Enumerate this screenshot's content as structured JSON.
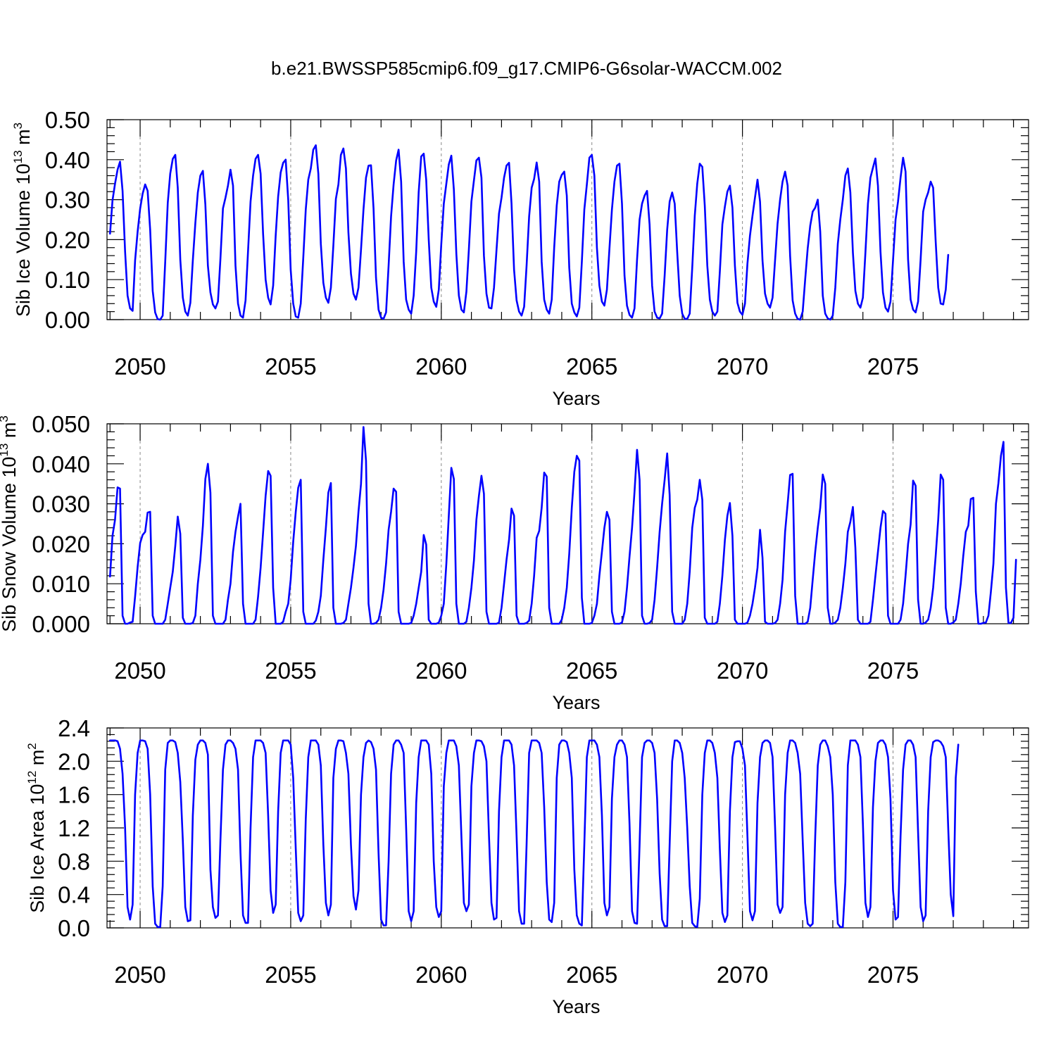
{
  "figure": {
    "title": "b.e21.BWSSP585cmip6.f09_g17.CMIP6-G6solar-WACCM.002"
  },
  "style": {
    "line_color": "#0000ff",
    "axis_color": "#000000",
    "gridline_color": "#888888"
  },
  "chart_data": [
    {
      "type": "line",
      "panel": "ice-volume",
      "ylabel": {
        "text": "Sib Ice Volume 10",
        "exp": "13",
        "unit": " m",
        "unit_exp": "3"
      },
      "xlabel": "Years",
      "xlim": [
        2048.9,
        2079.5
      ],
      "ylim": [
        0.0,
        0.5
      ],
      "yticks": [
        0.0,
        0.1,
        0.2,
        0.3,
        0.4,
        0.5
      ],
      "ytick_labels": [
        "0.00",
        "0.10",
        "0.20",
        "0.30",
        "0.40",
        "0.50"
      ],
      "ytick_minor_step": 0.02,
      "xticks": [
        2050,
        2055,
        2060,
        2065,
        2070,
        2075
      ],
      "xtick_labels": [
        "2050",
        "2055",
        "2060",
        "2065",
        "2070",
        "2075"
      ],
      "xtick_minor_step": 1,
      "gridlines_x": [
        2050,
        2055,
        2060,
        2065,
        2070,
        2075
      ],
      "start_year": 2049.0,
      "step": 0.0833333,
      "values": [
        0.215,
        0.298,
        0.34,
        0.375,
        0.395,
        0.322,
        0.17,
        0.06,
        0.028,
        0.022,
        0.148,
        0.22,
        0.278,
        0.315,
        0.338,
        0.322,
        0.225,
        0.072,
        0.018,
        0.001,
        0.0,
        0.01,
        0.145,
        0.292,
        0.365,
        0.402,
        0.412,
        0.33,
        0.15,
        0.055,
        0.02,
        0.01,
        0.042,
        0.148,
        0.242,
        0.318,
        0.36,
        0.372,
        0.288,
        0.135,
        0.068,
        0.038,
        0.028,
        0.045,
        0.152,
        0.278,
        0.305,
        0.335,
        0.375,
        0.335,
        0.135,
        0.04,
        0.01,
        0.005,
        0.048,
        0.17,
        0.295,
        0.36,
        0.402,
        0.412,
        0.365,
        0.215,
        0.1,
        0.055,
        0.038,
        0.085,
        0.21,
        0.308,
        0.368,
        0.392,
        0.4,
        0.3,
        0.125,
        0.04,
        0.008,
        0.005,
        0.04,
        0.155,
        0.275,
        0.35,
        0.378,
        0.425,
        0.436,
        0.365,
        0.19,
        0.092,
        0.055,
        0.042,
        0.08,
        0.185,
        0.302,
        0.338,
        0.412,
        0.428,
        0.378,
        0.218,
        0.115,
        0.065,
        0.05,
        0.08,
        0.175,
        0.275,
        0.355,
        0.385,
        0.386,
        0.278,
        0.105,
        0.025,
        0.005,
        0.002,
        0.018,
        0.135,
        0.258,
        0.338,
        0.398,
        0.425,
        0.345,
        0.145,
        0.05,
        0.025,
        0.015,
        0.06,
        0.17,
        0.318,
        0.408,
        0.415,
        0.35,
        0.2,
        0.08,
        0.045,
        0.032,
        0.075,
        0.188,
        0.29,
        0.34,
        0.388,
        0.41,
        0.325,
        0.165,
        0.06,
        0.025,
        0.018,
        0.07,
        0.175,
        0.295,
        0.348,
        0.398,
        0.405,
        0.355,
        0.16,
        0.065,
        0.03,
        0.028,
        0.08,
        0.175,
        0.265,
        0.305,
        0.355,
        0.385,
        0.392,
        0.29,
        0.125,
        0.048,
        0.02,
        0.01,
        0.032,
        0.135,
        0.258,
        0.33,
        0.352,
        0.393,
        0.345,
        0.145,
        0.05,
        0.025,
        0.015,
        0.05,
        0.18,
        0.285,
        0.345,
        0.362,
        0.37,
        0.31,
        0.13,
        0.04,
        0.018,
        0.008,
        0.03,
        0.145,
        0.275,
        0.338,
        0.405,
        0.412,
        0.36,
        0.18,
        0.085,
        0.045,
        0.035,
        0.075,
        0.178,
        0.275,
        0.345,
        0.385,
        0.39,
        0.29,
        0.11,
        0.035,
        0.012,
        0.005,
        0.028,
        0.15,
        0.25,
        0.29,
        0.31,
        0.322,
        0.238,
        0.085,
        0.02,
        0.005,
        0.003,
        0.015,
        0.11,
        0.225,
        0.295,
        0.318,
        0.29,
        0.17,
        0.06,
        0.015,
        0.002,
        0.002,
        0.015,
        0.13,
        0.26,
        0.34,
        0.39,
        0.382,
        0.285,
        0.135,
        0.05,
        0.02,
        0.01,
        0.02,
        0.12,
        0.238,
        0.283,
        0.32,
        0.335,
        0.28,
        0.135,
        0.042,
        0.02,
        0.012,
        0.04,
        0.14,
        0.21,
        0.26,
        0.305,
        0.35,
        0.295,
        0.148,
        0.065,
        0.04,
        0.03,
        0.055,
        0.15,
        0.24,
        0.3,
        0.345,
        0.37,
        0.335,
        0.16,
        0.048,
        0.015,
        0.002,
        0.0,
        0.02,
        0.1,
        0.178,
        0.235,
        0.27,
        0.28,
        0.3,
        0.22,
        0.06,
        0.015,
        0.003,
        0.0,
        0.01,
        0.08,
        0.19,
        0.25,
        0.3,
        0.36,
        0.378,
        0.318,
        0.168,
        0.072,
        0.04,
        0.03,
        0.055,
        0.168,
        0.29,
        0.355,
        0.38,
        0.403,
        0.335,
        0.17,
        0.068,
        0.03,
        0.02,
        0.045,
        0.148,
        0.25,
        0.295,
        0.355,
        0.405,
        0.37,
        0.15,
        0.05,
        0.025,
        0.018,
        0.045,
        0.15,
        0.27,
        0.3,
        0.318,
        0.345,
        0.33,
        0.195,
        0.08,
        0.04,
        0.038,
        0.075,
        0.162
      ]
    },
    {
      "type": "line",
      "panel": "snow-volume",
      "ylabel": {
        "text": "Sib Snow Volume 10",
        "exp": "13",
        "unit": " m",
        "unit_exp": "3"
      },
      "xlabel": "Years",
      "xlim": [
        2048.9,
        2079.5
      ],
      "ylim": [
        0.0,
        0.05
      ],
      "yticks": [
        0.0,
        0.01,
        0.02,
        0.03,
        0.04,
        0.05
      ],
      "ytick_labels": [
        "0.000",
        "0.010",
        "0.020",
        "0.030",
        "0.040",
        "0.050"
      ],
      "ytick_minor_step": 0.002,
      "xticks": [
        2050,
        2055,
        2060,
        2065,
        2070,
        2075
      ],
      "xtick_labels": [
        "2050",
        "2055",
        "2060",
        "2065",
        "2070",
        "2075"
      ],
      "xtick_minor_step": 1,
      "gridlines_x": [
        2050,
        2055,
        2060,
        2065,
        2070,
        2075
      ],
      "start_year": 2049.0,
      "step": 0.0833333,
      "values": [
        0.0118,
        0.022,
        0.026,
        0.0341,
        0.0338,
        0.002,
        0.0,
        0.0,
        0.0003,
        0.0005,
        0.0068,
        0.0142,
        0.0202,
        0.0222,
        0.023,
        0.0278,
        0.028,
        0.002,
        0.0,
        0.0,
        0.0,
        0.0,
        0.001,
        0.005,
        0.009,
        0.013,
        0.0195,
        0.0268,
        0.0225,
        0.0015,
        0.0,
        0.0,
        0.0,
        0.0002,
        0.002,
        0.01,
        0.016,
        0.0245,
        0.0362,
        0.04,
        0.0328,
        0.002,
        0.0,
        0.0,
        0.0,
        0.0,
        0.001,
        0.006,
        0.01,
        0.018,
        0.023,
        0.0268,
        0.03,
        0.005,
        0.0,
        0.0,
        0.0,
        0.0,
        0.001,
        0.0068,
        0.014,
        0.0228,
        0.032,
        0.0382,
        0.037,
        0.009,
        0.0,
        0.0,
        0.0,
        0.0005,
        0.003,
        0.005,
        0.011,
        0.0205,
        0.028,
        0.034,
        0.036,
        0.003,
        0.0,
        0.0,
        0.0,
        0.0,
        0.0008,
        0.003,
        0.007,
        0.016,
        0.024,
        0.0328,
        0.0352,
        0.004,
        0.0,
        0.0,
        0.0,
        0.0002,
        0.001,
        0.005,
        0.009,
        0.014,
        0.0195,
        0.028,
        0.035,
        0.0492,
        0.0408,
        0.005,
        0.0,
        0.0,
        0.0002,
        0.001,
        0.004,
        0.0085,
        0.015,
        0.0235,
        0.028,
        0.0338,
        0.033,
        0.003,
        0.0,
        0.0,
        0.0,
        0.0,
        0.0002,
        0.002,
        0.005,
        0.009,
        0.013,
        0.0222,
        0.0198,
        0.001,
        0.0,
        0.0,
        0.0,
        0.0003,
        0.002,
        0.005,
        0.015,
        0.027,
        0.039,
        0.0362,
        0.005,
        0.0,
        0.0,
        0.0,
        0.0005,
        0.004,
        0.009,
        0.0158,
        0.026,
        0.032,
        0.037,
        0.0325,
        0.003,
        0.0,
        0.0,
        0.0,
        0.0,
        0.0003,
        0.004,
        0.01,
        0.016,
        0.021,
        0.0288,
        0.027,
        0.002,
        0.0,
        0.0,
        0.0,
        0.0002,
        0.0008,
        0.005,
        0.012,
        0.0215,
        0.0232,
        0.029,
        0.0378,
        0.0368,
        0.004,
        0.0,
        0.0,
        0.0,
        0.0,
        0.001,
        0.004,
        0.009,
        0.0175,
        0.029,
        0.038,
        0.042,
        0.0408,
        0.0065,
        0.0,
        0.0,
        0.0,
        0.0002,
        0.002,
        0.005,
        0.012,
        0.018,
        0.024,
        0.028,
        0.026,
        0.003,
        0.0,
        0.0,
        0.0,
        0.0003,
        0.003,
        0.009,
        0.0168,
        0.024,
        0.033,
        0.0435,
        0.036,
        0.002,
        0.0,
        0.0,
        0.0002,
        0.001,
        0.006,
        0.014,
        0.023,
        0.03,
        0.036,
        0.0426,
        0.0322,
        0.003,
        0.0,
        0.0,
        0.0,
        0.0,
        0.001,
        0.005,
        0.013,
        0.024,
        0.029,
        0.031,
        0.036,
        0.031,
        0.0015,
        0.0,
        0.0,
        0.0,
        0.0,
        0.0005,
        0.005,
        0.012,
        0.021,
        0.027,
        0.0302,
        0.022,
        0.001,
        0.0,
        0.0,
        0.0,
        0.0,
        0.0003,
        0.002,
        0.005,
        0.009,
        0.014,
        0.0235,
        0.0165,
        0.0005,
        0.0,
        0.0,
        0.0,
        0.0002,
        0.001,
        0.005,
        0.011,
        0.023,
        0.03,
        0.0372,
        0.0375,
        0.007,
        0.0,
        0.0,
        0.0,
        0.0,
        0.0005,
        0.004,
        0.011,
        0.018,
        0.024,
        0.029,
        0.0373,
        0.035,
        0.004,
        0.0,
        0.0,
        0.0003,
        0.001,
        0.004,
        0.009,
        0.015,
        0.023,
        0.0255,
        0.0292,
        0.019,
        0.001,
        0.0,
        0.0,
        0.0,
        0.0,
        0.0005,
        0.006,
        0.012,
        0.018,
        0.024,
        0.0282,
        0.0275,
        0.002,
        0.0,
        0.0,
        0.0,
        0.0,
        0.001,
        0.005,
        0.012,
        0.02,
        0.0248,
        0.0358,
        0.0345,
        0.006,
        0.0,
        0.0,
        0.0003,
        0.001,
        0.004,
        0.009,
        0.017,
        0.026,
        0.0373,
        0.036,
        0.004,
        0.0,
        0.0,
        0.0003,
        0.001,
        0.005,
        0.01,
        0.017,
        0.023,
        0.0245,
        0.0312,
        0.0315,
        0.008,
        0.0,
        0.0,
        0.0002,
        0.0003,
        0.002,
        0.008,
        0.015,
        0.03,
        0.0352,
        0.042,
        0.0455,
        0.009,
        0.0002,
        0.0002,
        0.0015,
        0.016
      ]
    },
    {
      "type": "line",
      "panel": "ice-area",
      "ylabel": {
        "text": "Sib Ice Area 10",
        "exp": "12",
        "unit": " m",
        "unit_exp": "2"
      },
      "xlabel": "Years",
      "xlim": [
        2048.9,
        2079.5
      ],
      "ylim": [
        0.0,
        2.4
      ],
      "yticks": [
        0.0,
        0.4,
        0.8,
        1.2,
        1.6,
        2.0,
        2.4
      ],
      "ytick_labels": [
        "0.0",
        "0.4",
        "0.8",
        "1.2",
        "1.6",
        "2.0",
        "2.4"
      ],
      "ytick_minor_step": 0.08,
      "xticks": [
        2050,
        2055,
        2060,
        2065,
        2070,
        2075
      ],
      "xtick_labels": [
        "2050",
        "2055",
        "2060",
        "2065",
        "2070",
        "2075"
      ],
      "xtick_minor_step": 1,
      "gridlines_x": [
        2050,
        2055,
        2060,
        2065,
        2070,
        2075
      ],
      "start_year": 2049.0,
      "step": 0.0833333,
      "values": [
        2.25,
        2.25,
        2.25,
        2.24,
        2.15,
        1.85,
        1.2,
        0.25,
        0.1,
        0.28,
        1.6,
        2.1,
        2.25,
        2.25,
        2.24,
        2.15,
        1.6,
        0.5,
        0.05,
        0.01,
        0.01,
        0.5,
        1.9,
        2.22,
        2.25,
        2.25,
        2.23,
        2.1,
        1.75,
        1.05,
        0.25,
        0.08,
        0.09,
        1.35,
        2.02,
        2.2,
        2.25,
        2.25,
        2.22,
        2.08,
        0.7,
        0.25,
        0.12,
        0.15,
        1.05,
        1.9,
        2.2,
        2.25,
        2.25,
        2.22,
        2.15,
        1.9,
        0.9,
        0.15,
        0.06,
        0.06,
        1.2,
        2.05,
        2.25,
        2.25,
        2.25,
        2.22,
        2.1,
        1.35,
        0.45,
        0.18,
        0.28,
        1.4,
        2.1,
        2.25,
        2.25,
        2.25,
        2.2,
        1.8,
        0.95,
        0.18,
        0.08,
        0.15,
        1.3,
        2.05,
        2.25,
        2.25,
        2.25,
        2.2,
        1.95,
        1.0,
        0.3,
        0.15,
        0.28,
        1.8,
        2.15,
        2.25,
        2.25,
        2.24,
        2.1,
        1.85,
        1.0,
        0.38,
        0.22,
        0.45,
        1.6,
        2.05,
        2.22,
        2.25,
        2.23,
        2.15,
        1.9,
        0.9,
        0.1,
        0.03,
        0.03,
        0.8,
        1.85,
        2.2,
        2.25,
        2.25,
        2.2,
        2.1,
        1.2,
        0.2,
        0.08,
        0.2,
        1.5,
        2.05,
        2.25,
        2.25,
        2.25,
        2.2,
        1.85,
        0.8,
        0.25,
        0.13,
        0.2,
        1.7,
        2.1,
        2.25,
        2.25,
        2.25,
        2.18,
        1.95,
        1.1,
        0.3,
        0.2,
        0.28,
        1.7,
        2.1,
        2.25,
        2.25,
        2.24,
        2.18,
        2.0,
        1.1,
        0.3,
        0.1,
        0.12,
        1.4,
        2.05,
        2.25,
        2.25,
        2.25,
        2.2,
        1.95,
        1.1,
        0.2,
        0.05,
        0.05,
        1.0,
        2.1,
        2.25,
        2.25,
        2.25,
        2.22,
        2.1,
        1.45,
        0.55,
        0.1,
        0.07,
        0.3,
        1.8,
        2.2,
        2.25,
        2.25,
        2.23,
        2.1,
        1.8,
        0.7,
        0.15,
        0.05,
        0.03,
        1.0,
        2.05,
        2.25,
        2.25,
        2.25,
        2.2,
        2.05,
        1.35,
        0.3,
        0.15,
        0.25,
        1.55,
        2.05,
        2.2,
        2.25,
        2.25,
        2.2,
        2.05,
        1.25,
        0.2,
        0.06,
        0.05,
        1.0,
        2.05,
        2.22,
        2.25,
        2.25,
        2.22,
        2.1,
        1.55,
        0.65,
        0.1,
        0.02,
        0.02,
        1.0,
        2.0,
        2.25,
        2.25,
        2.22,
        2.1,
        1.8,
        1.2,
        0.5,
        0.06,
        0.02,
        0.01,
        0.35,
        1.6,
        2.1,
        2.25,
        2.25,
        2.22,
        2.1,
        1.8,
        0.95,
        0.18,
        0.07,
        0.15,
        1.4,
        2.05,
        2.23,
        2.24,
        2.24,
        2.15,
        1.95,
        1.1,
        0.2,
        0.09,
        0.2,
        1.5,
        2.05,
        2.22,
        2.25,
        2.25,
        2.22,
        2.05,
        1.2,
        0.28,
        0.18,
        0.25,
        1.6,
        2.1,
        2.25,
        2.25,
        2.22,
        2.1,
        1.85,
        1.05,
        0.3,
        0.05,
        0.02,
        0.05,
        1.1,
        1.95,
        2.2,
        2.25,
        2.25,
        2.18,
        2.05,
        1.6,
        0.55,
        0.05,
        0.01,
        0.01,
        0.55,
        1.95,
        2.25,
        2.25,
        2.25,
        2.2,
        2.05,
        1.25,
        0.3,
        0.13,
        0.25,
        1.45,
        2.0,
        2.22,
        2.25,
        2.25,
        2.2,
        2.05,
        1.55,
        0.45,
        0.1,
        0.13,
        1.1,
        1.9,
        2.2,
        2.25,
        2.25,
        2.2,
        2.05,
        1.15,
        0.25,
        0.08,
        0.15,
        1.4,
        2.05,
        2.23,
        2.25,
        2.25,
        2.23,
        2.18,
        2.05,
        1.2,
        0.4,
        0.14,
        1.8,
        2.2
      ]
    }
  ]
}
